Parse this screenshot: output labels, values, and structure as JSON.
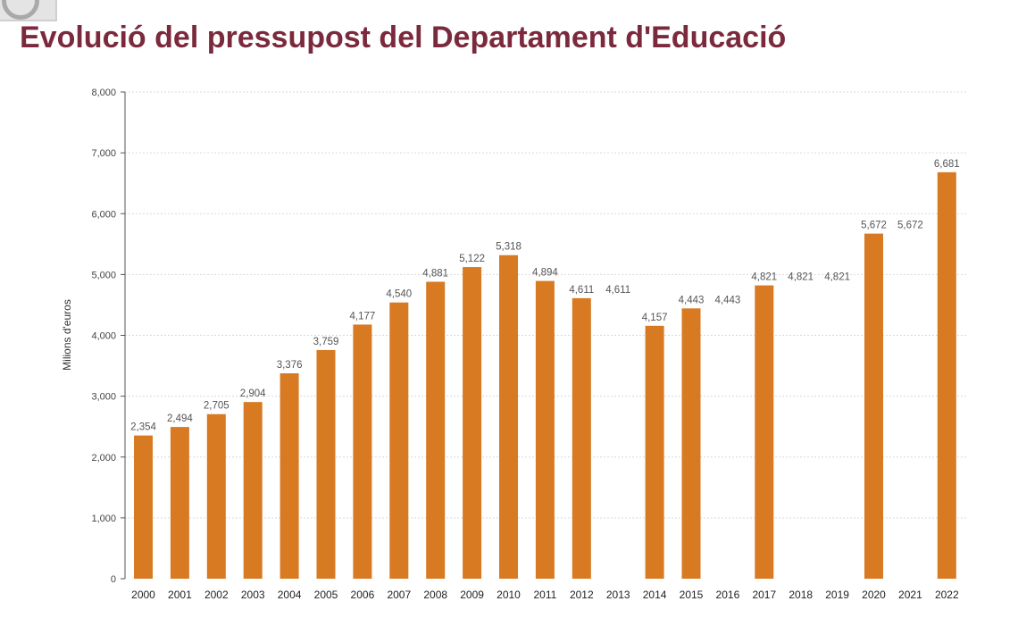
{
  "chart_data": {
    "type": "bar",
    "title": "Evolució del pressupost del Departament d'Educació",
    "xlabel": "",
    "ylabel": "Milions d'euros",
    "ylim": [
      0,
      8000
    ],
    "yticks": [
      "0",
      "1,000",
      "2,000",
      "3,000",
      "4,000",
      "5,000",
      "6,000",
      "7,000",
      "8,000"
    ],
    "categories": [
      "2000",
      "2001",
      "2002",
      "2003",
      "2004",
      "2005",
      "2006",
      "2007",
      "2008",
      "2009",
      "2010",
      "2011",
      "2012",
      "2013",
      "2014",
      "2015",
      "2016",
      "2017",
      "2018",
      "2019",
      "2020",
      "2021",
      "2022"
    ],
    "values": [
      2354,
      2494,
      2705,
      2904,
      3376,
      3759,
      4177,
      4540,
      4881,
      5122,
      5318,
      4894,
      4611,
      null,
      4157,
      4443,
      null,
      4821,
      null,
      null,
      5672,
      null,
      6681
    ],
    "data_labels": [
      "2,354",
      "2,494",
      "2,705",
      "2,904",
      "3,376",
      "3,759",
      "4,177",
      "4,540",
      "4,881",
      "5,122",
      "5,318",
      "4,894",
      "4,611",
      "4,611",
      "4,157",
      "4,443",
      "4,443",
      "4,821",
      "4,821",
      "4,821",
      "5,672",
      "5,672",
      "6,681"
    ],
    "label_values": [
      2354,
      2494,
      2705,
      2904,
      3376,
      3759,
      4177,
      4540,
      4881,
      5122,
      5318,
      4894,
      4611,
      4611,
      4157,
      4443,
      4443,
      4821,
      4821,
      4821,
      5672,
      5672,
      6681
    ],
    "grid": true,
    "legend": "none",
    "colors": {
      "bar": "#d87a22",
      "title": "#7a2a3c",
      "grid": "#d9d9d9",
      "axis": "#555555"
    }
  }
}
